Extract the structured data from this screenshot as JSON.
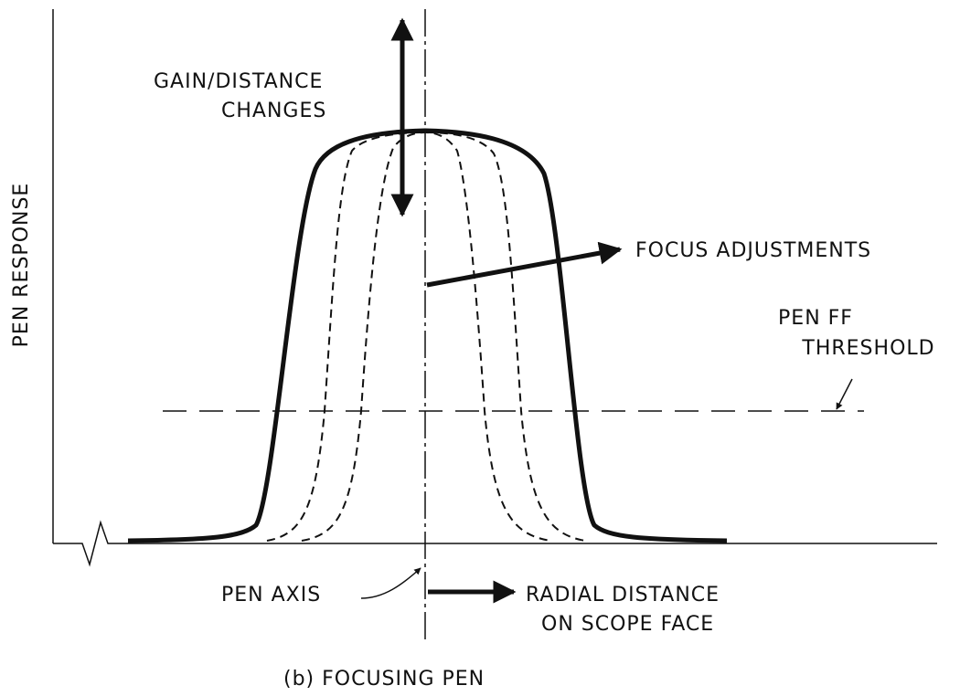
{
  "labels": {
    "gain_line1": "GAIN/DISTANCE",
    "gain_line2": "CHANGES",
    "focus": "FOCUS ADJUSTMENTS",
    "threshold_line1": "PEN FF",
    "threshold_line2": "THRESHOLD",
    "y_axis": "PEN RESPONSE",
    "pen_axis": "PEN AXIS",
    "radial_line1": "RADIAL DISTANCE",
    "radial_line2": "ON SCOPE FACE",
    "caption": "(b) FOCUSING PEN"
  }
}
